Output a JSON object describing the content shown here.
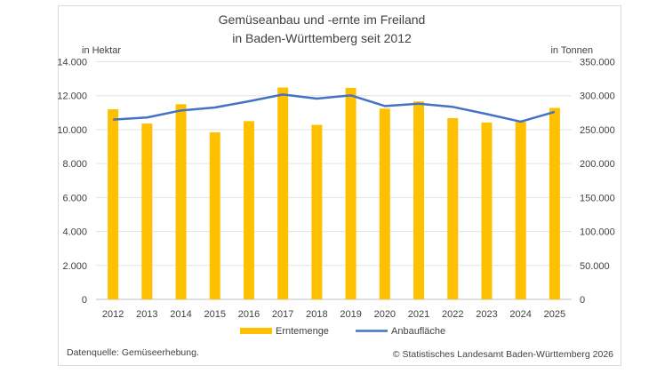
{
  "chart_data": {
    "type": "bar+line",
    "title_lines": [
      "Gemüseanbau und -ernte im Freiland",
      "in Baden-Württemberg seit 2012"
    ],
    "ylabel_left": "in Hektar",
    "ylabel_right": "in Tonnen",
    "categories": [
      "2012",
      "2013",
      "2014",
      "2015",
      "2016",
      "2017",
      "2018",
      "2019",
      "2020",
      "2021",
      "2022",
      "2023",
      "2024",
      "2025"
    ],
    "ylim_left": [
      0,
      14000
    ],
    "ylim_right": [
      0,
      350000
    ],
    "yticks_left": [
      "0",
      "2.000",
      "4.000",
      "6.000",
      "8.000",
      "10.000",
      "12.000",
      "14.000"
    ],
    "yticks_right": [
      "0",
      "50.000",
      "100.000",
      "150.000",
      "200.000",
      "250.000",
      "300.000",
      "350.000"
    ],
    "grid": true,
    "legend_placement": "bottom",
    "series": [
      {
        "name": "Erntemenge",
        "type": "bar",
        "axis": "right",
        "color": "#FFC000",
        "values": [
          280000,
          259000,
          287500,
          246000,
          262500,
          312000,
          257000,
          311500,
          281000,
          291500,
          267000,
          260500,
          261500,
          282000
        ]
      },
      {
        "name": "Anbaufläche",
        "type": "line",
        "axis": "left",
        "color": "#4472C4",
        "values": [
          10590,
          10715,
          11130,
          11305,
          11670,
          12070,
          11830,
          12020,
          11390,
          11530,
          11340,
          10920,
          10470,
          11045
        ]
      }
    ],
    "source": "Datenquelle: Gemüseerhebung.",
    "copyright": "© Statistisches Landesamt Baden-Württemberg 2026"
  }
}
